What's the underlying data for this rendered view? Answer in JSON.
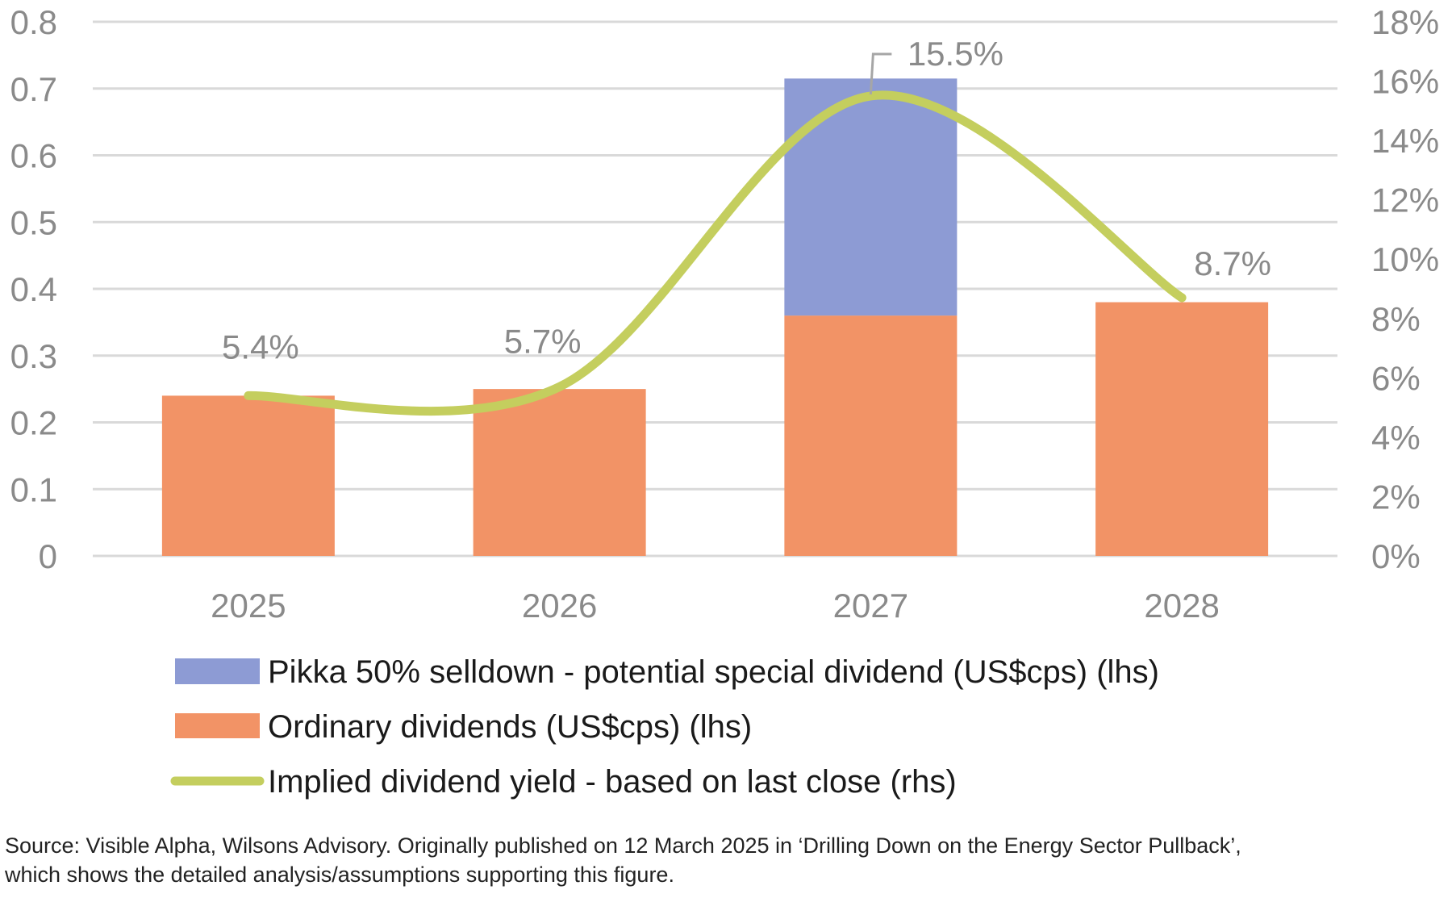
{
  "chart_data": {
    "type": "bar",
    "stacked": true,
    "categories": [
      "2025",
      "2026",
      "2027",
      "2028"
    ],
    "series": [
      {
        "name": "Ordinary dividends (US$cps) (lhs)",
        "type": "bar",
        "axis": "left",
        "color": "#F29366",
        "values": [
          0.24,
          0.25,
          0.36,
          0.38
        ]
      },
      {
        "name": "Pikka 50% selldown - potential special dividend (US$cps) (lhs)",
        "type": "bar",
        "axis": "left",
        "color": "#8D9BD4",
        "values": [
          0,
          0,
          0.355,
          0
        ]
      },
      {
        "name": "Implied dividend yield - based on last close (rhs)",
        "type": "line",
        "smooth": true,
        "axis": "right",
        "color": "#C4CE5E",
        "values": [
          5.4,
          5.7,
          15.5,
          8.7
        ],
        "data_labels": [
          "5.4%",
          "5.7%",
          "15.5%",
          "8.7%"
        ]
      }
    ],
    "y_left": {
      "range": [
        0,
        0.8
      ],
      "ticks": [
        0,
        0.1,
        0.2,
        0.3,
        0.4,
        0.5,
        0.6,
        0.7,
        0.8
      ],
      "tick_labels": [
        "0",
        "0.1",
        "0.2",
        "0.3",
        "0.4",
        "0.5",
        "0.6",
        "0.7",
        "0.8"
      ]
    },
    "y_right": {
      "range": [
        0,
        18
      ],
      "ticks": [
        0,
        2,
        4,
        6,
        8,
        10,
        12,
        14,
        16,
        18
      ],
      "tick_labels": [
        "0%",
        "2%",
        "4%",
        "6%",
        "8%",
        "10%",
        "12%",
        "14%",
        "16%",
        "18%"
      ]
    },
    "grid": true,
    "legend_position": "bottom",
    "legend": [
      {
        "label": "Pikka 50% selldown - potential special dividend (US$cps) (lhs)",
        "swatch": "box",
        "color": "#8D9BD4"
      },
      {
        "label": "Ordinary dividends (US$cps) (lhs)",
        "swatch": "box",
        "color": "#F29366"
      },
      {
        "label": "Implied dividend yield - based on last close (rhs)",
        "swatch": "line",
        "color": "#C4CE5E"
      }
    ],
    "title": "",
    "xlabel": "",
    "ylabel": ""
  },
  "source": {
    "line1": "Source: Visible Alpha, Wilsons Advisory. Originally published on 12 March 2025 in ‘Drilling Down on the Energy Sector Pullback’,",
    "line2": "which shows the detailed analysis/assumptions supporting this figure."
  },
  "colors": {
    "grid": "#D9D9D9",
    "tick_text": "#8A8A8A",
    "leader": "#A6A6A6"
  }
}
